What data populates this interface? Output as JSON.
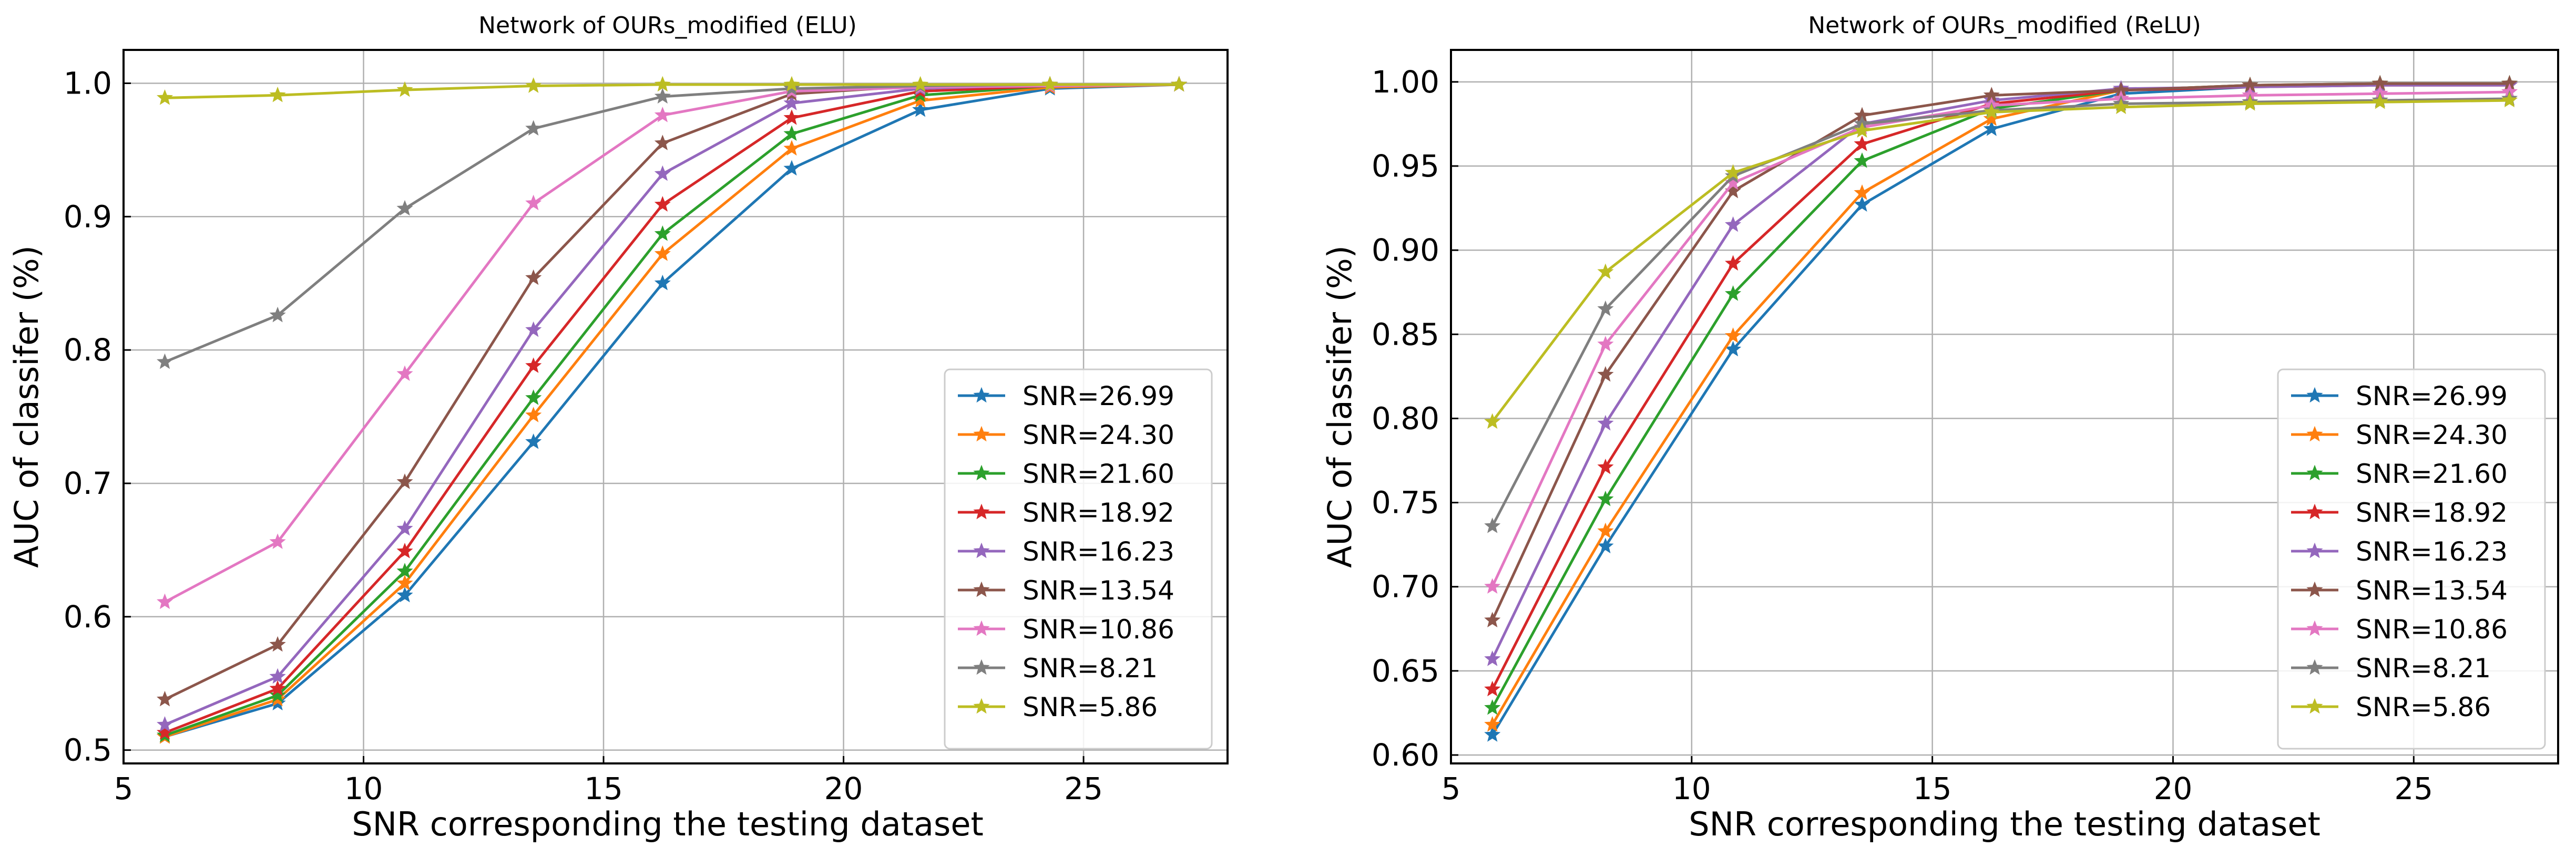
{
  "colors": [
    "#1f77b4",
    "#ff7f0e",
    "#2ca02c",
    "#d62728",
    "#9467bd",
    "#8c564b",
    "#e377c2",
    "#7f7f7f",
    "#bcbd22"
  ],
  "chart_data": [
    {
      "type": "line",
      "title": "Network of OURs_modified (ELU)",
      "xlabel": "SNR corresponding the testing dataset",
      "ylabel": "AUC of classifer (%)",
      "xlim": [
        5,
        28
      ],
      "ylim": [
        0.49,
        1.025
      ],
      "xticks": [
        5,
        10,
        15,
        20,
        25
      ],
      "yticks": [
        0.5,
        0.6,
        0.7,
        0.8,
        0.9,
        1.0
      ],
      "ytick_labels": [
        "0.5",
        "0.6",
        "0.7",
        "0.8",
        "0.9",
        "1.0"
      ],
      "grid": true,
      "legend_position": "lower-right",
      "x": [
        5.86,
        8.21,
        10.86,
        13.54,
        16.23,
        18.92,
        21.6,
        24.3,
        26.99
      ],
      "series": [
        {
          "name": "SNR=26.99",
          "values": [
            0.51,
            0.535,
            0.616,
            0.731,
            0.85,
            0.936,
            0.98,
            0.996,
            0.999
          ]
        },
        {
          "name": "SNR=24.30",
          "values": [
            0.51,
            0.538,
            0.625,
            0.751,
            0.872,
            0.951,
            0.987,
            0.997,
            0.999
          ]
        },
        {
          "name": "SNR=21.60",
          "values": [
            0.511,
            0.541,
            0.634,
            0.764,
            0.887,
            0.962,
            0.991,
            0.998,
            0.999
          ]
        },
        {
          "name": "SNR=18.92",
          "values": [
            0.513,
            0.546,
            0.649,
            0.788,
            0.909,
            0.974,
            0.994,
            0.998,
            0.999
          ]
        },
        {
          "name": "SNR=16.23",
          "values": [
            0.519,
            0.555,
            0.666,
            0.815,
            0.932,
            0.985,
            0.996,
            0.999,
            0.999
          ]
        },
        {
          "name": "SNR=13.54",
          "values": [
            0.538,
            0.579,
            0.701,
            0.854,
            0.955,
            0.992,
            0.998,
            0.999,
            0.999
          ]
        },
        {
          "name": "SNR=10.86",
          "values": [
            0.611,
            0.656,
            0.782,
            0.91,
            0.976,
            0.994,
            0.997,
            0.998,
            0.999
          ]
        },
        {
          "name": "SNR=8.21",
          "values": [
            0.791,
            0.826,
            0.906,
            0.966,
            0.99,
            0.996,
            0.998,
            0.999,
            0.999
          ]
        },
        {
          "name": "SNR=5.86",
          "values": [
            0.989,
            0.991,
            0.995,
            0.998,
            0.999,
            0.999,
            0.999,
            0.999,
            0.999
          ]
        }
      ]
    },
    {
      "type": "line",
      "title": "Network of OURs_modified (ReLU)",
      "xlabel": "SNR corresponding the testing dataset",
      "ylabel": "AUC of classifer (%)",
      "xlim": [
        5,
        28
      ],
      "ylim": [
        0.595,
        1.019
      ],
      "xticks": [
        5,
        10,
        15,
        20,
        25
      ],
      "yticks": [
        0.6,
        0.65,
        0.7,
        0.75,
        0.8,
        0.85,
        0.9,
        0.95,
        1.0
      ],
      "ytick_labels": [
        "0.60",
        "0.65",
        "0.70",
        "0.75",
        "0.80",
        "0.85",
        "0.90",
        "0.95",
        "1.00"
      ],
      "grid": true,
      "legend_position": "lower-right",
      "x": [
        5.86,
        8.21,
        10.86,
        13.54,
        16.23,
        18.92,
        21.6,
        24.3,
        26.99
      ],
      "series": [
        {
          "name": "SNR=26.99",
          "values": [
            0.612,
            0.724,
            0.841,
            0.927,
            0.972,
            0.993,
            0.997,
            0.999,
            0.999
          ]
        },
        {
          "name": "SNR=24.30",
          "values": [
            0.618,
            0.733,
            0.849,
            0.934,
            0.978,
            0.995,
            0.998,
            0.999,
            0.999
          ]
        },
        {
          "name": "SNR=21.60",
          "values": [
            0.628,
            0.752,
            0.874,
            0.953,
            0.984,
            0.995,
            0.998,
            0.999,
            0.999
          ]
        },
        {
          "name": "SNR=18.92",
          "values": [
            0.639,
            0.771,
            0.892,
            0.963,
            0.987,
            0.995,
            0.997,
            0.998,
            0.998
          ]
        },
        {
          "name": "SNR=16.23",
          "values": [
            0.657,
            0.797,
            0.915,
            0.975,
            0.989,
            0.996,
            0.997,
            0.998,
            0.998
          ]
        },
        {
          "name": "SNR=13.54",
          "values": [
            0.68,
            0.826,
            0.935,
            0.98,
            0.992,
            0.995,
            0.998,
            0.999,
            0.999
          ]
        },
        {
          "name": "SNR=10.86",
          "values": [
            0.7,
            0.844,
            0.94,
            0.973,
            0.986,
            0.99,
            0.992,
            0.993,
            0.994
          ]
        },
        {
          "name": "SNR=8.21",
          "values": [
            0.736,
            0.865,
            0.944,
            0.975,
            0.983,
            0.987,
            0.988,
            0.989,
            0.99
          ]
        },
        {
          "name": "SNR=5.86",
          "values": [
            0.798,
            0.887,
            0.946,
            0.971,
            0.982,
            0.985,
            0.987,
            0.988,
            0.989
          ]
        }
      ]
    }
  ]
}
